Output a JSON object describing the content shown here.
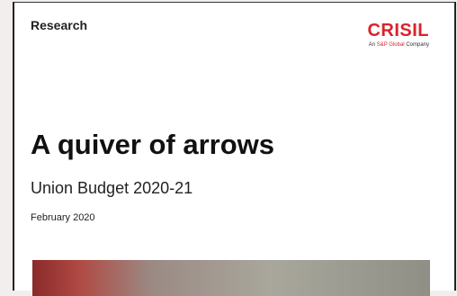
{
  "header": {
    "label": "Research"
  },
  "logo": {
    "name": "CRISIL",
    "tagline": [
      "An",
      "S&P Global",
      "Company"
    ]
  },
  "cover": {
    "title": "A quiver of arrows",
    "subtitle": "Union Budget 2020-21",
    "date": "February 2020"
  }
}
